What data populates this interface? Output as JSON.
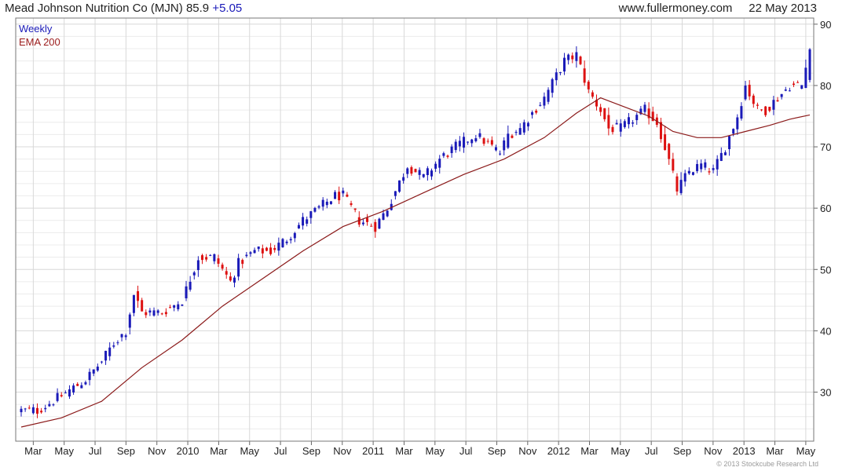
{
  "header": {
    "name": "Mead Johnson Nutrition Co (MJN)",
    "price": "85.9",
    "change": "+5.05",
    "site": "www.fullermoney.com",
    "date": "22 May 2013"
  },
  "legend": {
    "period": "Weekly",
    "ema": "EMA 200"
  },
  "copyright": "© 2013 Stockcube Research Ltd",
  "colors": {
    "up": "#1a1ab8",
    "down": "#dd1111",
    "ema": "#8b1a1a",
    "grid": "#d8d8d8"
  },
  "chart_data": {
    "type": "candlestick",
    "title": "Mead Johnson Nutrition Co (MJN) 85.9 +5.05",
    "frequency": "weekly",
    "ylim": [
      22,
      91
    ],
    "y_ticks": [
      30,
      40,
      50,
      60,
      70,
      80,
      90
    ],
    "y_axis_side": "right",
    "x_tick_labels": [
      "Mar",
      "May",
      "Jul",
      "Sep",
      "Nov",
      "2010",
      "Mar",
      "May",
      "Jul",
      "Sep",
      "Nov",
      "2011",
      "Mar",
      "May",
      "Jul",
      "Sep",
      "Nov",
      "2012",
      "Mar",
      "May",
      "Jul",
      "Sep",
      "Nov",
      "2013",
      "Mar",
      "May"
    ],
    "grid": true,
    "legend": "top-left",
    "series": [
      {
        "name": "Weekly",
        "close_points": [
          [
            0,
            27
          ],
          [
            4,
            27
          ],
          [
            9,
            29
          ],
          [
            16,
            32
          ],
          [
            20,
            35
          ],
          [
            23,
            38
          ],
          [
            26,
            40
          ],
          [
            28,
            46
          ],
          [
            30,
            43
          ],
          [
            35,
            43
          ],
          [
            40,
            45
          ],
          [
            44,
            52
          ],
          [
            48,
            52
          ],
          [
            52,
            48
          ],
          [
            54,
            51
          ],
          [
            58,
            53
          ],
          [
            62,
            53
          ],
          [
            66,
            55
          ],
          [
            70,
            58
          ],
          [
            74,
            60
          ],
          [
            78,
            62
          ],
          [
            80,
            62
          ],
          [
            84,
            58
          ],
          [
            88,
            57
          ],
          [
            91,
            60
          ],
          [
            96,
            67
          ],
          [
            100,
            65
          ],
          [
            104,
            68
          ],
          [
            108,
            70
          ],
          [
            113,
            72
          ],
          [
            119,
            69
          ],
          [
            121,
            72
          ],
          [
            124,
            73
          ],
          [
            130,
            78
          ],
          [
            135,
            84
          ],
          [
            138,
            85
          ],
          [
            141,
            79
          ],
          [
            144,
            76
          ],
          [
            146,
            73
          ],
          [
            149,
            73
          ],
          [
            155,
            76
          ],
          [
            158,
            74
          ],
          [
            160,
            70
          ],
          [
            163,
            63
          ],
          [
            166,
            66
          ],
          [
            169,
            67
          ],
          [
            172,
            66
          ],
          [
            175,
            70
          ],
          [
            178,
            75
          ],
          [
            180,
            80
          ],
          [
            183,
            76
          ],
          [
            185,
            76
          ],
          [
            188,
            78
          ],
          [
            191,
            80
          ],
          [
            194,
            80
          ],
          [
            196,
            85.9
          ]
        ]
      },
      {
        "name": "EMA 200",
        "points": [
          [
            0,
            24.3
          ],
          [
            10,
            25.8
          ],
          [
            20,
            28.5
          ],
          [
            30,
            34
          ],
          [
            40,
            38.5
          ],
          [
            50,
            44
          ],
          [
            60,
            48.5
          ],
          [
            70,
            53
          ],
          [
            80,
            57
          ],
          [
            90,
            59.5
          ],
          [
            100,
            62.5
          ],
          [
            110,
            65.5
          ],
          [
            120,
            68
          ],
          [
            130,
            71.5
          ],
          [
            138,
            75.5
          ],
          [
            144,
            78
          ],
          [
            150,
            76.5
          ],
          [
            156,
            75
          ],
          [
            162,
            72.5
          ],
          [
            168,
            71.5
          ],
          [
            174,
            71.5
          ],
          [
            180,
            72.5
          ],
          [
            186,
            73.5
          ],
          [
            191,
            74.5
          ],
          [
            196,
            75.2
          ]
        ]
      }
    ]
  }
}
